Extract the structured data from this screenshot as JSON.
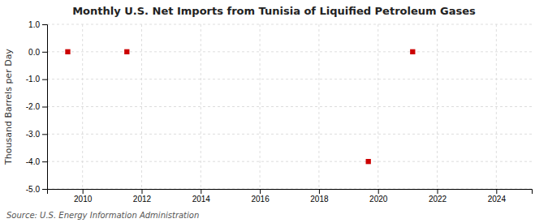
{
  "chart_data": {
    "type": "scatter",
    "title": "Monthly U.S. Net Imports from Tunisia of Liquified Petroleum Gases",
    "ylabel": "Thousand Barrels per Day",
    "annotations": [
      "Source: U.S. Energy Information Administration"
    ],
    "x": [
      2009.5,
      2011.5,
      2019.67,
      2021.17
    ],
    "values": [
      0.0,
      0.0,
      -4.0,
      0.0
    ],
    "color": "#cc0000",
    "marker": "square",
    "xlim": [
      2008.8,
      2025.2
    ],
    "ylim": [
      -5.0,
      1.0
    ],
    "xticks": [
      2010,
      2012,
      2014,
      2016,
      2018,
      2020,
      2022,
      2024
    ],
    "yticks": [
      {
        "value": 1.0,
        "label": "1.0"
      },
      {
        "value": 0.0,
        "label": "0.0"
      },
      {
        "value": -1.0,
        "label": "-1.0"
      },
      {
        "value": -2.0,
        "label": "-2.0"
      },
      {
        "value": -3.0,
        "label": "-3.0"
      },
      {
        "value": -4.0,
        "label": "-4.0"
      },
      {
        "value": -5.0,
        "label": "-5.0"
      }
    ],
    "grid": true
  }
}
